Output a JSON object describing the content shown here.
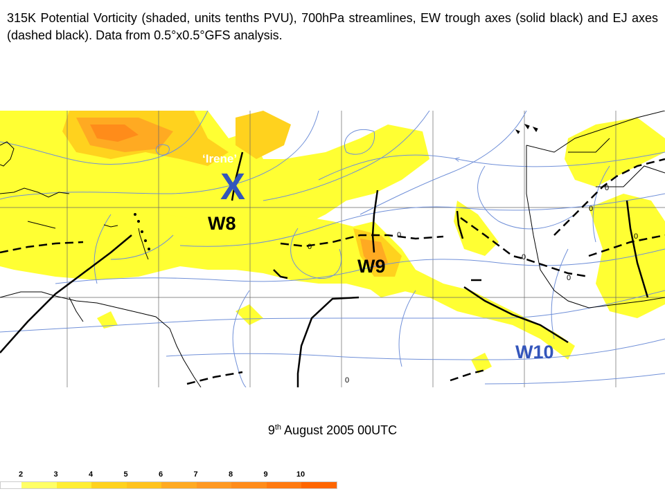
{
  "caption": "315K Potential Vorticity (shaded, units tenths PVU), 700hPa streamlines, EW trough axes (solid black) and EJ axes (dashed black). Data from 0.5°x0.5°GFS analysis.",
  "date": {
    "day": "9",
    "suffix": "th",
    "rest": "August 2005 00UTC"
  },
  "map": {
    "labels": {
      "irene": "‘Irene’",
      "x_marker": "X",
      "w8": "W8",
      "w9": "W9",
      "w10": "W10"
    },
    "contour_label": "0",
    "colors": {
      "pv_light": "#ffff33",
      "pv_mid": "#ffd21e",
      "pv_high": "#ffaa22",
      "pv_peak": "#ff8c1a",
      "streamline": "#6f8fd8",
      "land": "#000000",
      "label_blue": "#3355bb"
    }
  },
  "scale": {
    "ticks": [
      "2",
      "3",
      "4",
      "5",
      "6",
      "7",
      "8",
      "9",
      "10"
    ],
    "colors": [
      "#ffffff",
      "#ffff66",
      "#ffee33",
      "#ffd21e",
      "#ffc31e",
      "#ffaa22",
      "#ff9922",
      "#ff8c1a",
      "#ff7a10",
      "#ff6600"
    ]
  }
}
